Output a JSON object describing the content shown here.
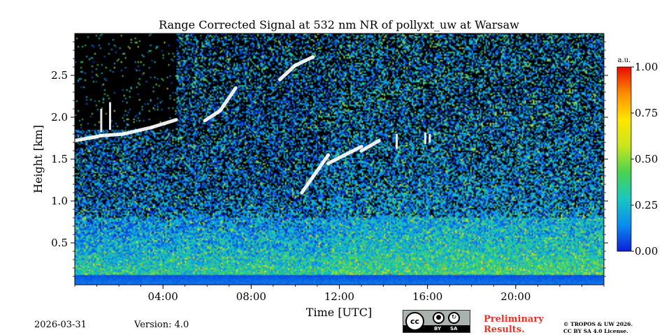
{
  "chart_data": {
    "type": "heatmap",
    "title": "Range Corrected Signal at 532 nm NR of pollyxt_uw at Warsaw",
    "xlabel": "Time [UTC]",
    "ylabel": "Height [km]",
    "xlim": [
      0,
      24
    ],
    "ylim": [
      0,
      3.0
    ],
    "x_ticks": [
      {
        "value": 4,
        "label": "04:00"
      },
      {
        "value": 8,
        "label": "08:00"
      },
      {
        "value": 12,
        "label": "12:00"
      },
      {
        "value": 16,
        "label": "16:00"
      },
      {
        "value": 20,
        "label": "20:00"
      }
    ],
    "y_ticks": [
      {
        "value": 0.5,
        "label": "0.5"
      },
      {
        "value": 1.0,
        "label": "1.0"
      },
      {
        "value": 1.5,
        "label": "1.5"
      },
      {
        "value": 2.0,
        "label": "2.0"
      },
      {
        "value": 2.5,
        "label": "2.5"
      }
    ],
    "colorbar": {
      "unit": "a.u.",
      "range": [
        0,
        1
      ],
      "ticks": [
        {
          "value": 0.0,
          "label": "0.00"
        },
        {
          "value": 0.25,
          "label": "0.25"
        },
        {
          "value": 0.5,
          "label": "0.50"
        },
        {
          "value": 0.75,
          "label": "0.75"
        },
        {
          "value": 1.0,
          "label": "1.00"
        }
      ],
      "colors": [
        "#0a1fd6",
        "#0a8cf0",
        "#19c8c0",
        "#4ad250",
        "#c8e61e",
        "#ffe600",
        "#ff8c00",
        "#e80a00"
      ]
    },
    "features": {
      "no_signal_color": "#000000",
      "cloud_color": "#ffffff",
      "cloud_layer_segments": [
        {
          "t0": 0.0,
          "t1": 1.2,
          "h0": 1.72,
          "h1": 1.78
        },
        {
          "t0": 1.2,
          "t1": 2.2,
          "h0": 1.78,
          "h1": 1.8
        },
        {
          "t0": 2.2,
          "t1": 3.5,
          "h0": 1.8,
          "h1": 1.88
        },
        {
          "t0": 3.5,
          "t1": 4.6,
          "h0": 1.88,
          "h1": 1.97
        },
        {
          "t0": 5.9,
          "t1": 6.6,
          "h0": 1.96,
          "h1": 2.08
        },
        {
          "t0": 6.6,
          "t1": 7.3,
          "h0": 2.08,
          "h1": 2.35
        },
        {
          "t0": 9.3,
          "t1": 10.0,
          "h0": 2.45,
          "h1": 2.62
        },
        {
          "t0": 10.0,
          "t1": 10.8,
          "h0": 2.62,
          "h1": 2.72
        },
        {
          "t0": 10.3,
          "t1": 11.5,
          "h0": 1.1,
          "h1": 1.55
        },
        {
          "t0": 11.5,
          "t1": 13.0,
          "h0": 1.45,
          "h1": 1.65
        },
        {
          "t0": 13.0,
          "t1": 13.8,
          "h0": 1.6,
          "h1": 1.72
        }
      ],
      "cloud_spikes": [
        {
          "t": 1.2,
          "h0": 1.82,
          "h1": 2.1
        },
        {
          "t": 1.6,
          "h0": 1.85,
          "h1": 2.18
        },
        {
          "t": 14.6,
          "h0": 1.62,
          "h1": 1.8
        },
        {
          "t": 15.9,
          "h0": 1.68,
          "h1": 1.82
        },
        {
          "t": 16.1,
          "h0": 1.7,
          "h1": 1.8
        }
      ],
      "black_region_end_time": 4.6,
      "black_region_min_height": 1.85
    }
  },
  "footer": {
    "date": "2026-03-31",
    "version": "Version: 4.0",
    "preliminary_line1": "Preliminary",
    "preliminary_line2": "Results.",
    "copyright_line1": "© TROPOS & UW 2026.",
    "copyright_line2": "CC BY SA 4.0 License."
  },
  "license_badge": {
    "cc": "cc",
    "by": "BY",
    "sa": "SA"
  }
}
